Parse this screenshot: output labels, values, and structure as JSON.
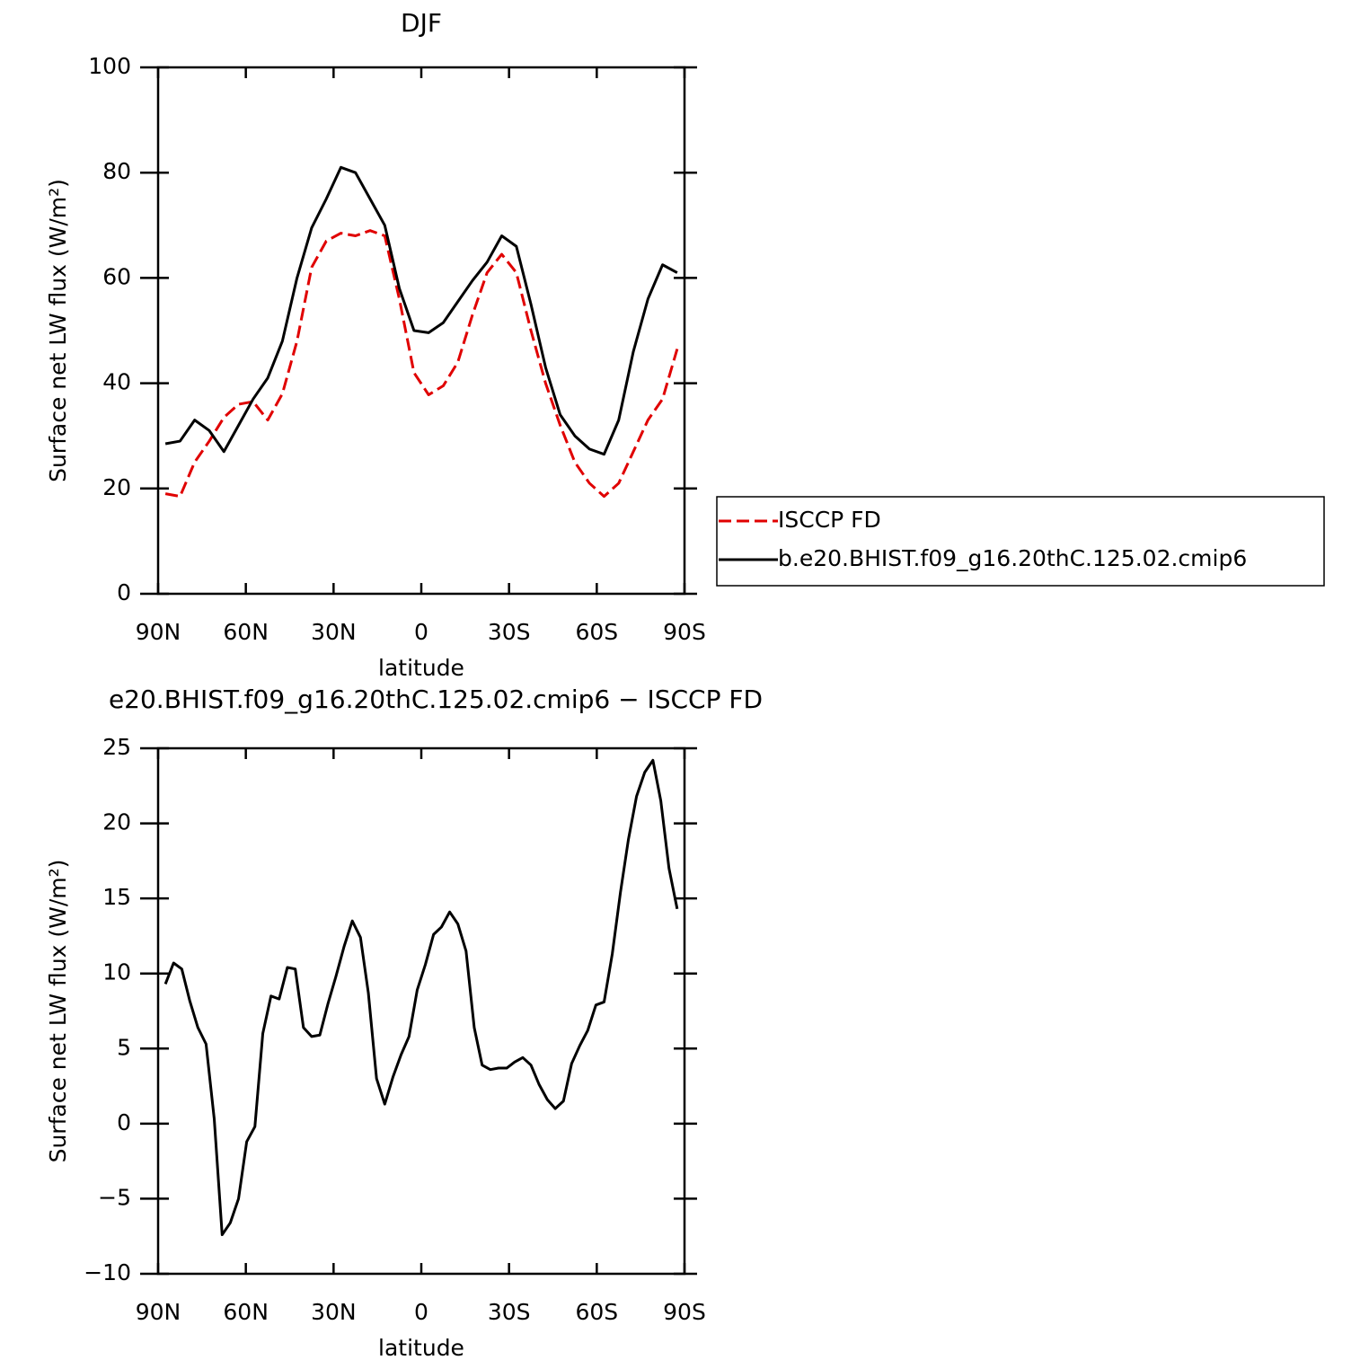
{
  "chart_data": [
    {
      "type": "line",
      "title": "DJF",
      "xlabel": "latitude",
      "ylabel": "Surface net LW flux (W/m²)",
      "x": [
        87.5,
        82.5,
        77.5,
        72.5,
        67.5,
        62.5,
        57.5,
        52.5,
        47.5,
        42.5,
        37.5,
        32.5,
        27.5,
        22.5,
        17.5,
        12.5,
        7.5,
        2.5,
        -2.5,
        -7.5,
        -12.5,
        -17.5,
        -22.5,
        -27.5,
        -32.5,
        -37.5,
        -42.5,
        -47.5,
        -52.5,
        -57.5,
        -62.5,
        -67.5,
        -72.5,
        -77.5,
        -82.5,
        -87.5
      ],
      "series": [
        {
          "name": "ISCCP FD",
          "color": "#e00000",
          "linestyle": "dashed",
          "values": [
            19,
            18.5,
            25,
            29,
            33.5,
            36,
            36.5,
            33,
            38,
            48,
            62,
            67,
            68.5,
            68,
            69,
            68,
            56,
            42,
            37.8,
            39.5,
            44,
            53,
            61,
            64.5,
            61,
            50,
            40,
            32,
            25,
            21,
            18.5,
            21,
            27,
            33,
            37,
            46.5
          ]
        },
        {
          "name": "b.e20.BHIST.f09_g16.20thC.125.02.cmip6",
          "color": "#000000",
          "linestyle": "solid",
          "values": [
            28.5,
            29,
            33,
            31,
            27,
            32,
            37,
            41,
            48,
            60,
            69.5,
            75,
            81,
            80,
            75,
            70,
            58,
            50,
            49.6,
            51.5,
            55.5,
            59.5,
            63,
            68,
            66,
            55,
            43,
            34,
            30,
            27.5,
            26.5,
            33,
            46,
            56,
            62.5,
            61
          ]
        }
      ],
      "xlim": [
        90,
        -90
      ],
      "xticks": [
        {
          "value": 90,
          "label": "90N"
        },
        {
          "value": 60,
          "label": "60N"
        },
        {
          "value": 30,
          "label": "30N"
        },
        0,
        {
          "value": -30,
          "label": "30S"
        },
        {
          "value": -60,
          "label": "60S"
        },
        {
          "value": -90,
          "label": "90S"
        }
      ],
      "ylim": [
        0,
        100
      ],
      "yticks": [
        0,
        20,
        40,
        60,
        80,
        100
      ],
      "legend": "right"
    },
    {
      "type": "line",
      "title": "e20.BHIST.f09_g16.20thC.125.02.cmip6 − ISCCP FD",
      "xlabel": "latitude",
      "ylabel": "Surface net LW flux (W/m²)",
      "x": [
        87.5,
        84.7,
        81.9,
        79.2,
        76.4,
        73.6,
        70.8,
        68.1,
        65.3,
        62.5,
        59.7,
        56.9,
        54.2,
        51.4,
        48.6,
        45.8,
        43.1,
        40.3,
        37.5,
        34.7,
        31.9,
        29.2,
        26.4,
        23.6,
        20.8,
        18.1,
        15.3,
        12.5,
        9.7,
        6.9,
        4.2,
        1.4,
        -1.4,
        -4.2,
        -6.9,
        -9.7,
        -12.5,
        -15.3,
        -18.1,
        -20.8,
        -23.6,
        -26.4,
        -29.2,
        -31.9,
        -34.7,
        -37.5,
        -40.3,
        -43.1,
        -45.8,
        -48.6,
        -51.4,
        -54.2,
        -56.9,
        -59.7,
        -62.5,
        -65.3,
        -68.1,
        -70.8,
        -73.6,
        -76.4,
        -79.2,
        -81.9,
        -84.7,
        -87.5
      ],
      "series": [
        {
          "color": "#000000",
          "linestyle": "solid",
          "values": [
            9.3,
            10.7,
            10.3,
            8.2,
            6.4,
            5.3,
            0.3,
            -7.4,
            -6.6,
            -5,
            -1.2,
            -0.2,
            6,
            8.5,
            8.3,
            10.4,
            10.3,
            6.4,
            5.8,
            5.9,
            8,
            9.8,
            11.8,
            13.5,
            12.4,
            8.7,
            3,
            1.3,
            3.1,
            4.6,
            5.8,
            8.9,
            10.6,
            12.6,
            13.1,
            14.1,
            13.3,
            11.5,
            6.4,
            3.9,
            3.6,
            3.7,
            3.7,
            4.1,
            4.4,
            3.9,
            2.6,
            1.6,
            1,
            1.5,
            4,
            5.2,
            6.2,
            7.9,
            8.1,
            11.3,
            15.4,
            18.9,
            21.8,
            23.4,
            24.2,
            21.5,
            17,
            14.3
          ]
        }
      ],
      "xlim": [
        90,
        -90
      ],
      "xticks": [
        {
          "value": 90,
          "label": "90N"
        },
        {
          "value": 60,
          "label": "60N"
        },
        {
          "value": 30,
          "label": "30N"
        },
        0,
        {
          "value": -30,
          "label": "30S"
        },
        {
          "value": -60,
          "label": "60S"
        },
        {
          "value": -90,
          "label": "90S"
        }
      ],
      "ylim": [
        -10,
        25
      ],
      "yticks": [
        {
          "value": -10,
          "label": "−10"
        },
        {
          "value": -5,
          "label": "−5"
        },
        0,
        5,
        10,
        15,
        20,
        25
      ]
    }
  ]
}
